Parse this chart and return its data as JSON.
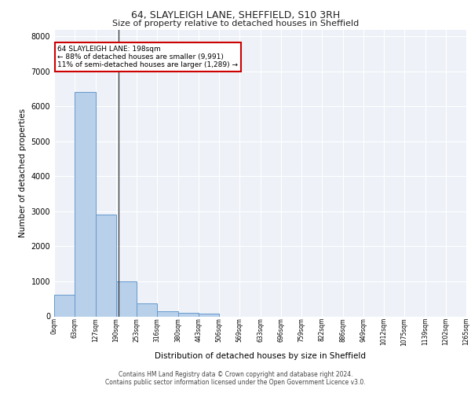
{
  "title": "64, SLAYLEIGH LANE, SHEFFIELD, S10 3RH",
  "subtitle": "Size of property relative to detached houses in Sheffield",
  "xlabel": "Distribution of detached houses by size in Sheffield",
  "ylabel": "Number of detached properties",
  "bin_edges": [
    0,
    63,
    127,
    190,
    253,
    316,
    380,
    443,
    506,
    569,
    633,
    696,
    759,
    822,
    886,
    949,
    1012,
    1075,
    1139,
    1202,
    1265
  ],
  "bar_heights": [
    620,
    6420,
    2900,
    1000,
    370,
    150,
    90,
    75,
    0,
    0,
    0,
    0,
    0,
    0,
    0,
    0,
    0,
    0,
    0,
    0
  ],
  "bar_color": "#b8d0ea",
  "bar_edge_color": "#6699cc",
  "property_line_x": 198,
  "annotation_text": "64 SLAYLEIGH LANE: 198sqm\n← 88% of detached houses are smaller (9,991)\n11% of semi-detached houses are larger (1,289) →",
  "annotation_box_color": "#ffffff",
  "annotation_box_edge_color": "#cc0000",
  "tick_labels": [
    "0sqm",
    "63sqm",
    "127sqm",
    "190sqm",
    "253sqm",
    "316sqm",
    "380sqm",
    "443sqm",
    "506sqm",
    "569sqm",
    "633sqm",
    "696sqm",
    "759sqm",
    "822sqm",
    "886sqm",
    "949sqm",
    "1012sqm",
    "1075sqm",
    "1139sqm",
    "1202sqm",
    "1265sqm"
  ],
  "ylim": [
    0,
    8200
  ],
  "yticks": [
    0,
    1000,
    2000,
    3000,
    4000,
    5000,
    6000,
    7000,
    8000
  ],
  "bg_color": "#eef2f8",
  "grid_color": "#ffffff",
  "footer_line1": "Contains HM Land Registry data © Crown copyright and database right 2024.",
  "footer_line2": "Contains public sector information licensed under the Open Government Licence v3.0."
}
